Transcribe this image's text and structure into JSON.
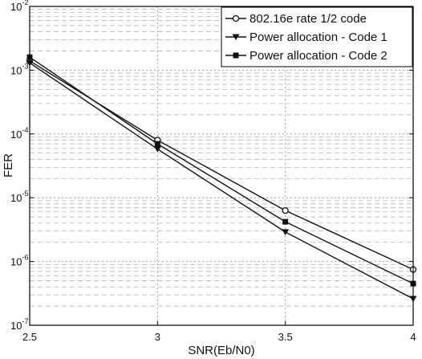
{
  "chart_data": {
    "type": "line",
    "xlabel": "SNR(Eb/N0)",
    "ylabel": "FER",
    "xlim": [
      2.5,
      4
    ],
    "ylim": [
      1e-07,
      0.01
    ],
    "yscale": "log",
    "grid": true,
    "legend_position": "top-right",
    "x_ticks": [
      "2.5",
      "3",
      "3.5",
      "4"
    ],
    "y_ticks": [
      {
        "base": "10",
        "exp": "-2",
        "value": 0.01
      },
      {
        "base": "10",
        "exp": "-3",
        "value": 0.001
      },
      {
        "base": "10",
        "exp": "-4",
        "value": 0.0001
      },
      {
        "base": "10",
        "exp": "-5",
        "value": 1e-05
      },
      {
        "base": "10",
        "exp": "-6",
        "value": 1e-06
      },
      {
        "base": "10",
        "exp": "-7",
        "value": 1e-07
      }
    ],
    "series": [
      {
        "name": "802.16e rate 1/2 code",
        "marker": "circle",
        "x": [
          2.5,
          3,
          3.5,
          4
        ],
        "y": [
          0.0014,
          8e-05,
          6.3e-06,
          7.5e-07
        ]
      },
      {
        "name": "Power allocation - Code 1",
        "marker": "triangle-down",
        "x": [
          2.5,
          3,
          3.5,
          4
        ],
        "y": [
          0.0013,
          5.8e-05,
          2.9e-06,
          2.6e-07
        ]
      },
      {
        "name": "Power allocation - Code 2",
        "marker": "square",
        "x": [
          2.5,
          3,
          3.5,
          4
        ],
        "y": [
          0.0016,
          7e-05,
          4.2e-06,
          4.5e-07
        ]
      }
    ]
  }
}
